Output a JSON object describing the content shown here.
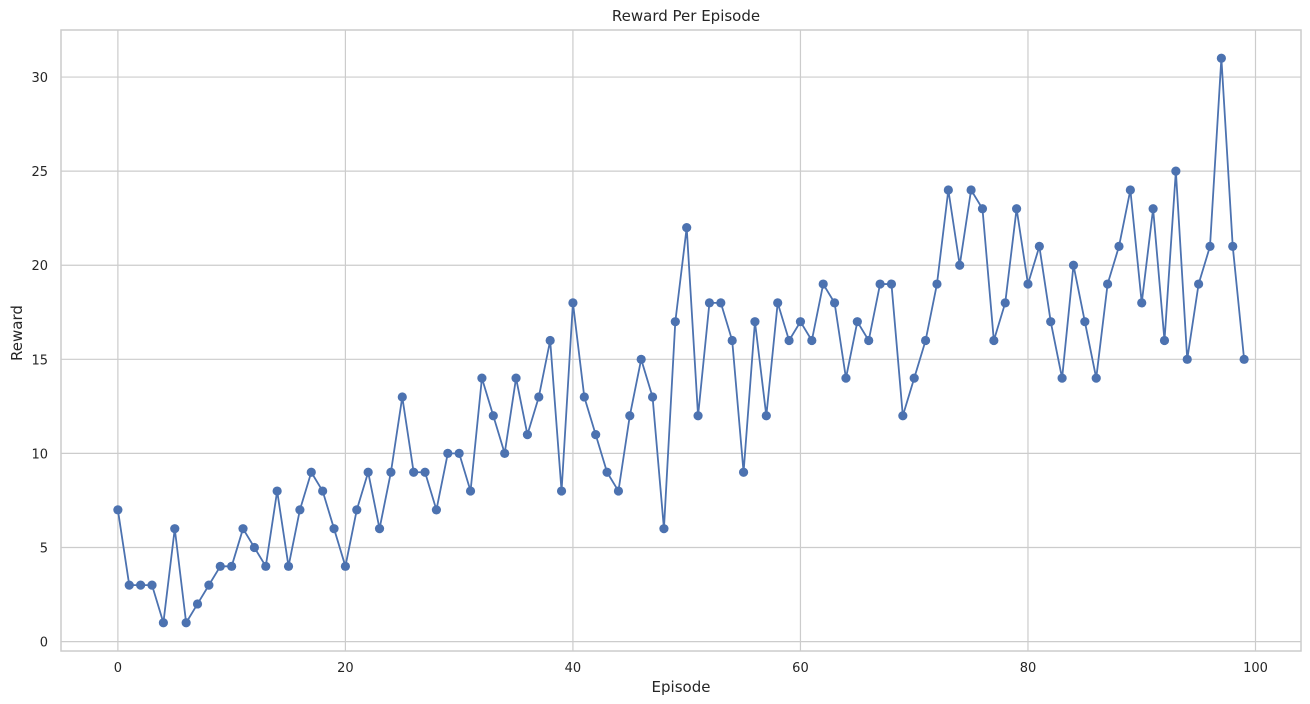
{
  "chart_data": {
    "type": "line",
    "title": "Reward Per Episode",
    "xlabel": "Episode",
    "ylabel": "Reward",
    "xlim": [
      -5,
      104
    ],
    "ylim": [
      -0.5,
      32.5
    ],
    "xticks": [
      0,
      20,
      40,
      60,
      80,
      100
    ],
    "yticks": [
      0,
      5,
      10,
      15,
      20,
      25,
      30
    ],
    "grid": true,
    "legend": "none",
    "series": [
      {
        "color": "#4c72b0",
        "marker": "circle",
        "x": [
          0,
          1,
          2,
          3,
          4,
          5,
          6,
          7,
          8,
          9,
          10,
          11,
          12,
          13,
          14,
          15,
          16,
          17,
          18,
          19,
          20,
          21,
          22,
          23,
          24,
          25,
          26,
          27,
          28,
          29,
          30,
          31,
          32,
          33,
          34,
          35,
          36,
          37,
          38,
          39,
          40,
          41,
          42,
          43,
          44,
          45,
          46,
          47,
          48,
          49,
          50,
          51,
          52,
          53,
          54,
          55,
          56,
          57,
          58,
          59,
          60,
          61,
          62,
          63,
          64,
          65,
          66,
          67,
          68,
          69,
          70,
          71,
          72,
          73,
          74,
          75,
          76,
          77,
          78,
          79,
          80,
          81,
          82,
          83,
          84,
          85,
          86,
          87,
          88,
          89,
          90,
          91,
          92,
          93,
          94,
          95,
          96,
          97,
          98,
          99
        ],
        "values": [
          7,
          3,
          3,
          3,
          1,
          6,
          1,
          2,
          3,
          4,
          4,
          6,
          5,
          4,
          8,
          4,
          7,
          9,
          8,
          6,
          4,
          7,
          9,
          6,
          9,
          13,
          9,
          9,
          7,
          10,
          10,
          8,
          14,
          12,
          10,
          14,
          11,
          13,
          16,
          8,
          18,
          13,
          11,
          9,
          8,
          12,
          15,
          13,
          6,
          17,
          22,
          12,
          18,
          18,
          16,
          9,
          17,
          12,
          18,
          16,
          17,
          16,
          19,
          18,
          14,
          17,
          16,
          19,
          19,
          12,
          14,
          16,
          19,
          24,
          20,
          24,
          23,
          16,
          18,
          23,
          19,
          21,
          17,
          14,
          20,
          17,
          14,
          19,
          21,
          24,
          18,
          23,
          16,
          25,
          15,
          19,
          21,
          31,
          21,
          15
        ]
      }
    ]
  },
  "colors": {
    "grid": "#cccccc",
    "spine": "#cccccc",
    "text": "#262626"
  }
}
